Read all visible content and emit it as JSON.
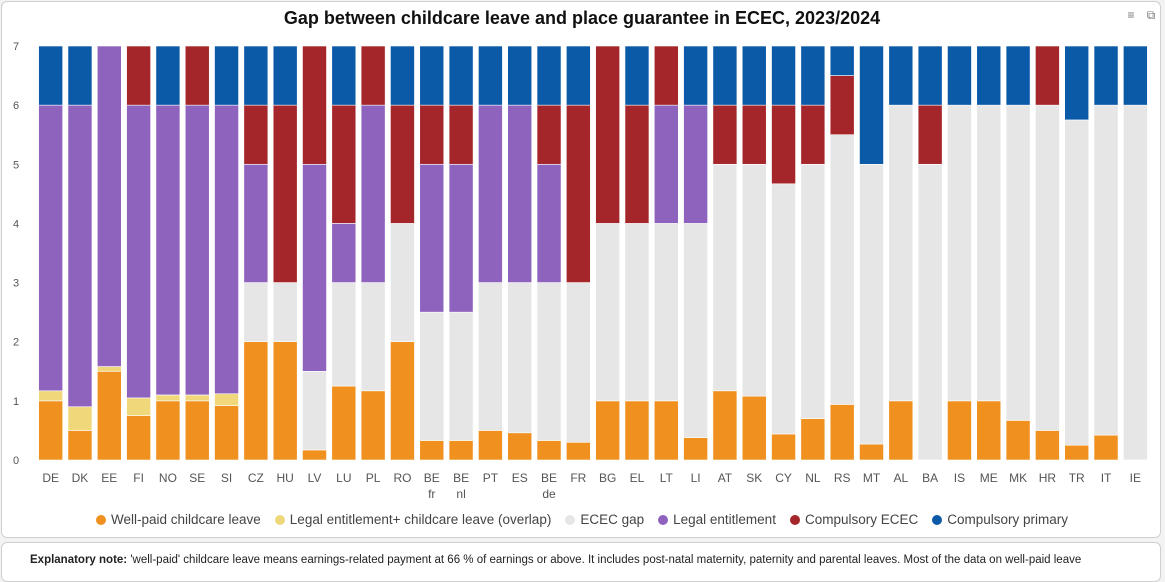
{
  "title": "Gap between childcare leave and place guarantee in ECEC, 2023/2024",
  "toolbar": {
    "filter_icon": "filter-icon",
    "expand_icon": "expand-icon"
  },
  "note": {
    "label": "Explanatory note:",
    "text": " 'well-paid' childcare leave means earnings-related payment at 66 % of earnings or above. It includes post-natal maternity, paternity and parental leaves. Most of the data on well-paid leave"
  },
  "colors": {
    "well_paid": "#f0901e",
    "overlap": "#f0d77a",
    "gap": "#e6e6e6",
    "legal": "#8e63be",
    "compulsory_ecec": "#a5262a",
    "compulsory_primary": "#0b5aa8"
  },
  "chart_data": {
    "type": "bar",
    "stacked": true,
    "title": "Gap between childcare leave and place guarantee in ECEC, 2023/2024",
    "ylim": [
      0,
      7
    ],
    "yticks": [
      "0",
      "1",
      "2",
      "3",
      "4",
      "5",
      "6",
      "7"
    ],
    "grid": false,
    "legend_position": "bottom",
    "categories": [
      "DE",
      "DK",
      "EE",
      "FI",
      "NO",
      "SE",
      "SI",
      "CZ",
      "HU",
      "LV",
      "LU",
      "PL",
      "RO",
      "BE fr",
      "BE nl",
      "PT",
      "ES",
      "BE de",
      "FR",
      "BG",
      "EL",
      "LT",
      "LI",
      "AT",
      "SK",
      "CY",
      "NL",
      "RS",
      "MT",
      "AL",
      "BA",
      "IS",
      "ME",
      "MK",
      "HR",
      "TR",
      "IT",
      "IE"
    ],
    "category_lines": [
      [
        "DE"
      ],
      [
        "DK"
      ],
      [
        "EE"
      ],
      [
        "FI"
      ],
      [
        "NO"
      ],
      [
        "SE"
      ],
      [
        "SI"
      ],
      [
        "CZ"
      ],
      [
        "HU"
      ],
      [
        "LV"
      ],
      [
        "LU"
      ],
      [
        "PL"
      ],
      [
        "RO"
      ],
      [
        "BE",
        "fr"
      ],
      [
        "BE",
        "nl"
      ],
      [
        "PT"
      ],
      [
        "ES"
      ],
      [
        "BE",
        "de"
      ],
      [
        "FR"
      ],
      [
        "BG"
      ],
      [
        "EL"
      ],
      [
        "LT"
      ],
      [
        "LI"
      ],
      [
        "AT"
      ],
      [
        "SK"
      ],
      [
        "CY"
      ],
      [
        "NL"
      ],
      [
        "RS"
      ],
      [
        "MT"
      ],
      [
        "AL"
      ],
      [
        "BA"
      ],
      [
        "IS"
      ],
      [
        "ME"
      ],
      [
        "MK"
      ],
      [
        "HR"
      ],
      [
        "TR"
      ],
      [
        "IT"
      ],
      [
        "IE"
      ]
    ],
    "series": [
      {
        "key": "well_paid",
        "name": "Well-paid childcare leave",
        "values": [
          1.0,
          0.5,
          1.5,
          0.75,
          1.0,
          1.0,
          0.92,
          2.0,
          2.0,
          0.17,
          1.25,
          1.17,
          2.0,
          0.33,
          0.33,
          0.5,
          0.46,
          0.33,
          0.3,
          1.0,
          1.0,
          1.0,
          0.38,
          1.17,
          1.08,
          0.44,
          0.7,
          0.94,
          0.27,
          1.0,
          0,
          1.0,
          1.0,
          0.67,
          0.5,
          0.25,
          0.42,
          0
        ]
      },
      {
        "key": "overlap",
        "name": "Legal entitlement+ childcare leave (overlap)",
        "values": [
          0.17,
          0.4,
          0.08,
          0.3,
          0.1,
          0.1,
          0.2,
          0,
          0,
          0,
          0,
          0,
          0,
          0,
          0,
          0,
          0,
          0,
          0,
          0,
          0,
          0,
          0,
          0,
          0,
          0,
          0,
          0,
          0,
          0,
          0,
          0,
          0,
          0,
          0,
          0,
          0,
          0
        ]
      },
      {
        "key": "gap",
        "name": "ECEC gap",
        "values": [
          0,
          0,
          0,
          0,
          0,
          0,
          0,
          1.0,
          1.0,
          1.33,
          1.75,
          1.83,
          2.0,
          2.17,
          2.17,
          2.5,
          2.54,
          2.67,
          2.7,
          3.0,
          3.0,
          3.0,
          3.62,
          3.83,
          3.92,
          4.23,
          4.3,
          4.56,
          4.73,
          5.0,
          5.0,
          5.0,
          5.0,
          5.33,
          5.5,
          5.5,
          5.58,
          6.0
        ]
      },
      {
        "key": "legal",
        "name": "Legal entitlement",
        "values": [
          4.83,
          5.1,
          5.42,
          4.95,
          4.9,
          4.9,
          4.88,
          2.0,
          0,
          3.5,
          1.0,
          3.0,
          0,
          2.5,
          2.5,
          3.0,
          3.0,
          2.0,
          0,
          0,
          0,
          2.0,
          2.0,
          0,
          0,
          0,
          0,
          0,
          0,
          0,
          0,
          0,
          0,
          0,
          0,
          0,
          0,
          0
        ]
      },
      {
        "key": "compulsory_ecec",
        "name": "Compulsory ECEC",
        "values": [
          0,
          0,
          0,
          1.0,
          0,
          1.0,
          0,
          1.0,
          3.0,
          2.0,
          2.0,
          1.0,
          2.0,
          1.0,
          1.0,
          0,
          0,
          1.0,
          3.0,
          3.0,
          2.0,
          1.0,
          0,
          1.0,
          1.0,
          1.33,
          1.0,
          1.0,
          0,
          0,
          1.0,
          0,
          0,
          0,
          1.0,
          0,
          0,
          0
        ]
      },
      {
        "key": "compulsory_primary",
        "name": "Compulsory primary",
        "values": [
          1.0,
          1.0,
          0,
          0,
          1.0,
          0,
          1.0,
          1.0,
          1.0,
          0,
          1.0,
          0,
          1.0,
          1.0,
          1.0,
          1.0,
          1.0,
          1.0,
          1.0,
          0,
          1.0,
          0,
          1.0,
          1.0,
          1.0,
          1.0,
          1.0,
          0.5,
          2.0,
          1.0,
          1.0,
          1.0,
          1.0,
          1.0,
          0,
          1.25,
          1.0,
          1.0
        ]
      }
    ]
  }
}
